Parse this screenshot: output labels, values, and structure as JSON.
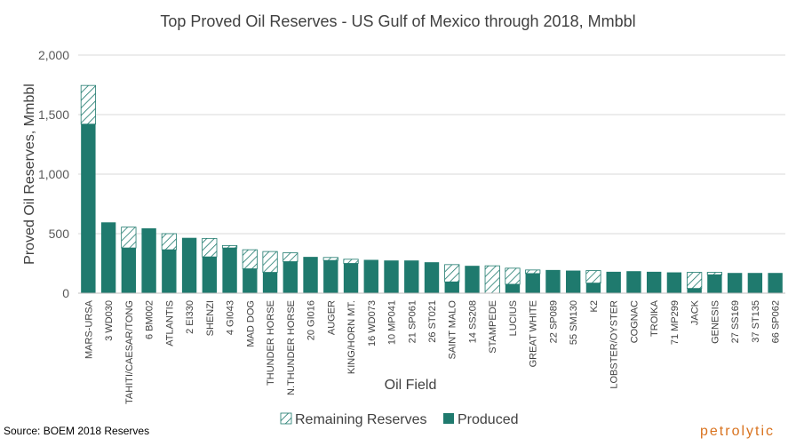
{
  "chart_data": {
    "type": "bar",
    "stacked": true,
    "title": "Top Proved Oil Reserves - US Gulf of Mexico through 2018, Mmbbl",
    "xlabel": "Oil Field",
    "ylabel": "Proved Oil Reserves, Mmbbl",
    "ylim": [
      0,
      2000
    ],
    "yticks": [
      "0",
      "500",
      "1,000",
      "1,500",
      "2,000"
    ],
    "ytick_values": [
      0,
      500,
      1000,
      1500,
      2000
    ],
    "grid": true,
    "legend_position": "bottom",
    "categories": [
      "MARS-URSA",
      "3 WD030",
      "TAHITI/CAESAR/TONG",
      "6 BM002",
      "ATLANTIS",
      "2 EI330",
      "SHENZI",
      "4 GI043",
      "MAD DOG",
      "THUNDER HORSE",
      "N.THUNDER HORSE",
      "20 GI016",
      "AUGER",
      "KING/HORN MT.",
      "16 WD073",
      "10 MP041",
      "21 SP061",
      "26 ST021",
      "SAINT MALO",
      "14 SS208",
      "STAMPEDE",
      "LUCIUS",
      "GREAT WHITE",
      "22 SP089",
      "55 SM130",
      "K2",
      "LOBSTER/OYSTER",
      "COGNAC",
      "TROIKA",
      "71 MP299",
      "JACK",
      "GENESIS",
      "27 SS169",
      "37 ST135",
      "66 SP062"
    ],
    "series": [
      {
        "name": "Produced",
        "color": "#1f7a6e",
        "pattern": "solid",
        "values": [
          1420,
          595,
          380,
          545,
          365,
          465,
          305,
          380,
          205,
          175,
          265,
          305,
          275,
          250,
          280,
          275,
          275,
          260,
          95,
          230,
          0,
          75,
          165,
          195,
          190,
          85,
          180,
          185,
          180,
          175,
          40,
          155,
          170,
          170,
          170
        ]
      },
      {
        "name": "Remaining Reserves",
        "color": "#1f7a6e",
        "pattern": "diagonal-hatch",
        "values": [
          325,
          0,
          175,
          0,
          135,
          0,
          155,
          20,
          160,
          175,
          75,
          0,
          25,
          35,
          0,
          0,
          0,
          0,
          145,
          0,
          230,
          135,
          30,
          0,
          0,
          105,
          0,
          0,
          0,
          0,
          135,
          20,
          0,
          0,
          0
        ]
      }
    ],
    "legend": [
      "Remaining Reserves",
      "Produced"
    ]
  },
  "footer": {
    "source": "Source: BOEM 2018 Reserves",
    "brand": "petrolytic"
  }
}
